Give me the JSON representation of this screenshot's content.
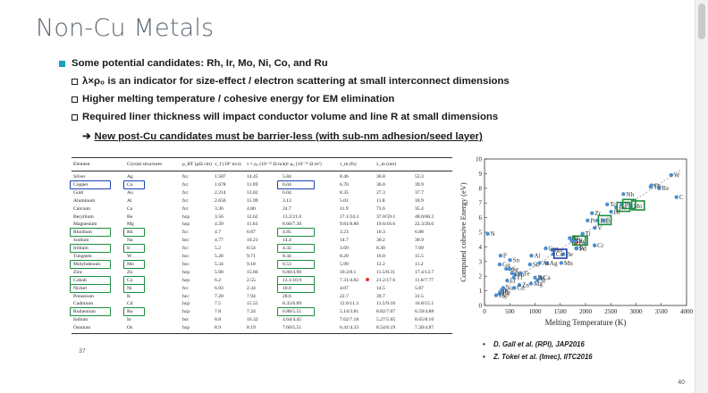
{
  "slide": {
    "title": "Non-Cu Metals",
    "page_number": "40",
    "table_page_number": "37"
  },
  "bullets": {
    "main": "Some potential candidates: Rh, Ir, Mo, Ni, Co, and Ru",
    "sub": [
      "λ×ρ₀ is an indicator for size-effect / electron scattering at small interconnect dimensions",
      "Higher melting temperature / cohesive energy for EM elimination",
      "Required liner thickness will impact conductor volume and line R at small dimensions"
    ],
    "conclusion_arrow": "➔",
    "conclusion": "New post-Cu candidates must be barrier-less (with sub-nm adhesion/seed layer)"
  },
  "table": {
    "headers": [
      "Element",
      "Crystal structures",
      "ρ_RT (μΩ cm)",
      "v_f (10⁶ m/s)",
      "τ × ρ₀ (10⁻²² Ω m s)",
      "λ × ρ₀ (10⁻¹⁶ Ω m²)",
      "τ_m (fs)",
      "λ_m (nm)"
    ],
    "rows": [
      [
        "Silver",
        "Ag",
        "fcc",
        "1.587",
        "14.45",
        "5.84",
        "8.46",
        "36.8",
        "53.3"
      ],
      [
        "Copper",
        "Cu",
        "fcc",
        "1.678",
        "11.09",
        "6.04",
        "6.70",
        "36.0",
        "39.9"
      ],
      [
        "Gold",
        "Au",
        "fcc",
        "2.214",
        "13.82",
        "6.04",
        "8.35",
        "27.3",
        "37.7"
      ],
      [
        "Aluminum",
        "Al",
        "fcc",
        "2.650",
        "15.99",
        "3.13",
        "5.01",
        "11.8",
        "18.9"
      ],
      [
        "Calcium",
        "Ca",
        "fcc",
        "3.36",
        "4.80",
        "24.7",
        "11.9",
        "73.6",
        "35.4"
      ],
      [
        "Beryllium",
        "Be",
        "hcp",
        "3.56",
        "12.62",
        "13.2/21.0",
        "17.1/24.3",
        "37.0/59.1",
        "48.0/68.2"
      ],
      [
        "Magnesium",
        "Mg",
        "hcp",
        "4.39",
        "11.63",
        "8.60/7.30",
        "9.81/8.80",
        "19.6/16.6",
        "22.3/20.0"
      ],
      [
        "Rhodium",
        "Rh",
        "fcc",
        "4.7",
        "6.67",
        "4.85",
        "3.23",
        "10.3",
        "6.88"
      ],
      [
        "Sodium",
        "Na",
        "bcc",
        "4.77",
        "10.21",
        "14.4",
        "14.7",
        "30.2",
        "30.9"
      ],
      [
        "Iridium",
        "Ir",
        "fcc",
        "5.2",
        "8.54",
        "4.32",
        "3.69",
        "8.30",
        "7.09"
      ],
      [
        "Tungsten",
        "W",
        "bcc",
        "5.28",
        "9.71",
        "8.44",
        "8.20",
        "16.0",
        "15.5"
      ],
      [
        "Molybdenum",
        "Mo",
        "bcc",
        "5.34",
        "9.18",
        "6.53",
        "5.99",
        "12.2",
        "11.2"
      ],
      [
        "Zinc",
        "Zn",
        "hcp",
        "5.90",
        "15.66",
        "6.80/4.90",
        "10.3/8.1",
        "11.5/8.31",
        "17.4/13.7"
      ],
      [
        "Cobalt",
        "Co",
        "hcp",
        "6.2",
        "2.55",
        "13.1/10.9",
        "7.31/4.82",
        "21.2/17.6",
        "11.8/7.77"
      ],
      [
        "Nickel",
        "Ni",
        "fcc",
        "6.93",
        "2.34",
        "10.0",
        "4.07",
        "14.5",
        "5.87"
      ],
      [
        "Potassium",
        "K",
        "bcc",
        "7.20",
        "7.94",
        "28.6",
        "22.7",
        "39.7",
        "31.5"
      ],
      [
        "Cadmium",
        "Cd",
        "hcp",
        "7.5",
        "15.55",
        "8.35/6.89",
        "12.6/11.3",
        "11.5/9.18",
        "16.8/15.1"
      ],
      [
        "Ruthenium",
        "Ru",
        "hcp",
        "7.8",
        "7.24",
        "6.88/5.51",
        "5.14/3.81",
        "8.82/7.07",
        "6.59/4.88"
      ],
      [
        "Indium",
        "In",
        "bct",
        "8.8",
        "16.32",
        "4.64/4.45",
        "7.62/7.18",
        "5.27/5.05",
        "8.65/8.16"
      ],
      [
        "Osmium",
        "Os",
        "hcp",
        "8.9",
        "8.19",
        "7.60/5.51",
        "6.41/4.33",
        "8.54/6.19",
        "7.20/4.87"
      ]
    ]
  },
  "chart_data": {
    "type": "scatter",
    "xlabel": "Melting Temperature (K)",
    "ylabel": "Computed cohesive Energy (eV)",
    "xlim": [
      0,
      4000
    ],
    "ylim": [
      0,
      10
    ],
    "xticks": [
      "0",
      "500",
      "1000",
      "1500",
      "2000",
      "2500",
      "3000",
      "3500",
      "4000"
    ],
    "yticks": [
      "0",
      "1",
      "2",
      "3",
      "4",
      "5",
      "6",
      "7",
      "8",
      "9",
      "10"
    ],
    "points": [
      {
        "label": "Li",
        "x": 450,
        "y": 1.7
      },
      {
        "label": "Na",
        "x": 370,
        "y": 1.2
      },
      {
        "label": "K",
        "x": 340,
        "y": 1.0
      },
      {
        "label": "Rb",
        "x": 310,
        "y": 0.9
      },
      {
        "label": "Cs",
        "x": 300,
        "y": 0.8
      },
      {
        "label": "Be",
        "x": 1560,
        "y": 3.5
      },
      {
        "label": "Mg",
        "x": 920,
        "y": 1.5
      },
      {
        "label": "Ca",
        "x": 1110,
        "y": 1.9
      },
      {
        "label": "Sr",
        "x": 1050,
        "y": 1.7
      },
      {
        "label": "Ba",
        "x": 1000,
        "y": 1.9
      },
      {
        "label": "Al",
        "x": 930,
        "y": 3.4
      },
      {
        "label": "Ga",
        "x": 300,
        "y": 2.8
      },
      {
        "label": "In",
        "x": 430,
        "y": 2.5
      },
      {
        "label": "Tl",
        "x": 580,
        "y": 1.9
      },
      {
        "label": "Sn",
        "x": 505,
        "y": 3.1
      },
      {
        "label": "Pb",
        "x": 600,
        "y": 2.1
      },
      {
        "label": "Bi",
        "x": 545,
        "y": 2.2
      },
      {
        "label": "Sb",
        "x": 900,
        "y": 2.8
      },
      {
        "label": "Te",
        "x": 720,
        "y": 2.2
      },
      {
        "label": "Zn",
        "x": 690,
        "y": 1.4
      },
      {
        "label": "Cd",
        "x": 590,
        "y": 1.2
      },
      {
        "label": "Hg",
        "x": 230,
        "y": 0.7
      },
      {
        "label": "Ag",
        "x": 1235,
        "y": 2.9
      },
      {
        "label": "Au",
        "x": 1340,
        "y": 3.8
      },
      {
        "label": "Cu",
        "x": 1358,
        "y": 3.5
      },
      {
        "label": "Ni",
        "x": 1728,
        "y": 4.4
      },
      {
        "label": "Co",
        "x": 1768,
        "y": 4.4
      },
      {
        "label": "Fe",
        "x": 1811,
        "y": 4.3
      },
      {
        "label": "Mn",
        "x": 1519,
        "y": 2.9
      },
      {
        "label": "Cr",
        "x": 2180,
        "y": 4.1
      },
      {
        "label": "V",
        "x": 2183,
        "y": 5.3
      },
      {
        "label": "Ti",
        "x": 1941,
        "y": 4.9
      },
      {
        "label": "Sc",
        "x": 1814,
        "y": 3.9
      },
      {
        "label": "Y",
        "x": 1799,
        "y": 4.4
      },
      {
        "label": "Zr",
        "x": 2128,
        "y": 6.3
      },
      {
        "label": "Nb",
        "x": 2750,
        "y": 7.6
      },
      {
        "label": "Mo",
        "x": 2896,
        "y": 6.8
      },
      {
        "label": "Tc",
        "x": 2430,
        "y": 6.9
      },
      {
        "label": "Ru",
        "x": 2607,
        "y": 6.7
      },
      {
        "label": "Rh",
        "x": 2237,
        "y": 5.8
      },
      {
        "label": "Pd",
        "x": 1828,
        "y": 3.9
      },
      {
        "label": "Hf",
        "x": 2506,
        "y": 6.4
      },
      {
        "label": "Ta",
        "x": 3290,
        "y": 8.1
      },
      {
        "label": "W",
        "x": 3695,
        "y": 8.9
      },
      {
        "label": "Re",
        "x": 3459,
        "y": 8.0
      },
      {
        "label": "Os",
        "x": 3306,
        "y": 8.2
      },
      {
        "label": "Ir",
        "x": 2719,
        "y": 6.9
      },
      {
        "label": "Pt",
        "x": 2041,
        "y": 5.8
      },
      {
        "label": "Si",
        "x": 1687,
        "y": 4.6
      },
      {
        "label": "Ge",
        "x": 1211,
        "y": 3.9
      },
      {
        "label": "As",
        "x": 1090,
        "y": 2.9
      },
      {
        "label": "Se",
        "x": 494,
        "y": 2.5
      },
      {
        "label": "P",
        "x": 317,
        "y": 3.4
      },
      {
        "label": "N",
        "x": 63,
        "y": 4.9
      },
      {
        "label": "C",
        "x": 3800,
        "y": 7.4
      },
      {
        "label": "B",
        "x": 2349,
        "y": 5.8
      }
    ],
    "highlighted": [
      "Mo",
      "Ru",
      "Ir",
      "Rh",
      "Co",
      "Ni",
      "Cu"
    ]
  },
  "references": [
    "D. Gall et al. (RPI), JAP2016",
    "Z. Tokei et al. (Imec), IITC2016"
  ],
  "colors": {
    "title": "#5b6670",
    "bullet": "#1aa0c6",
    "box_green": "#1b8d3f",
    "box_blue": "#1e3fb0",
    "chart_point": "#4a8fcf",
    "chart_red": "#e23b2f"
  }
}
